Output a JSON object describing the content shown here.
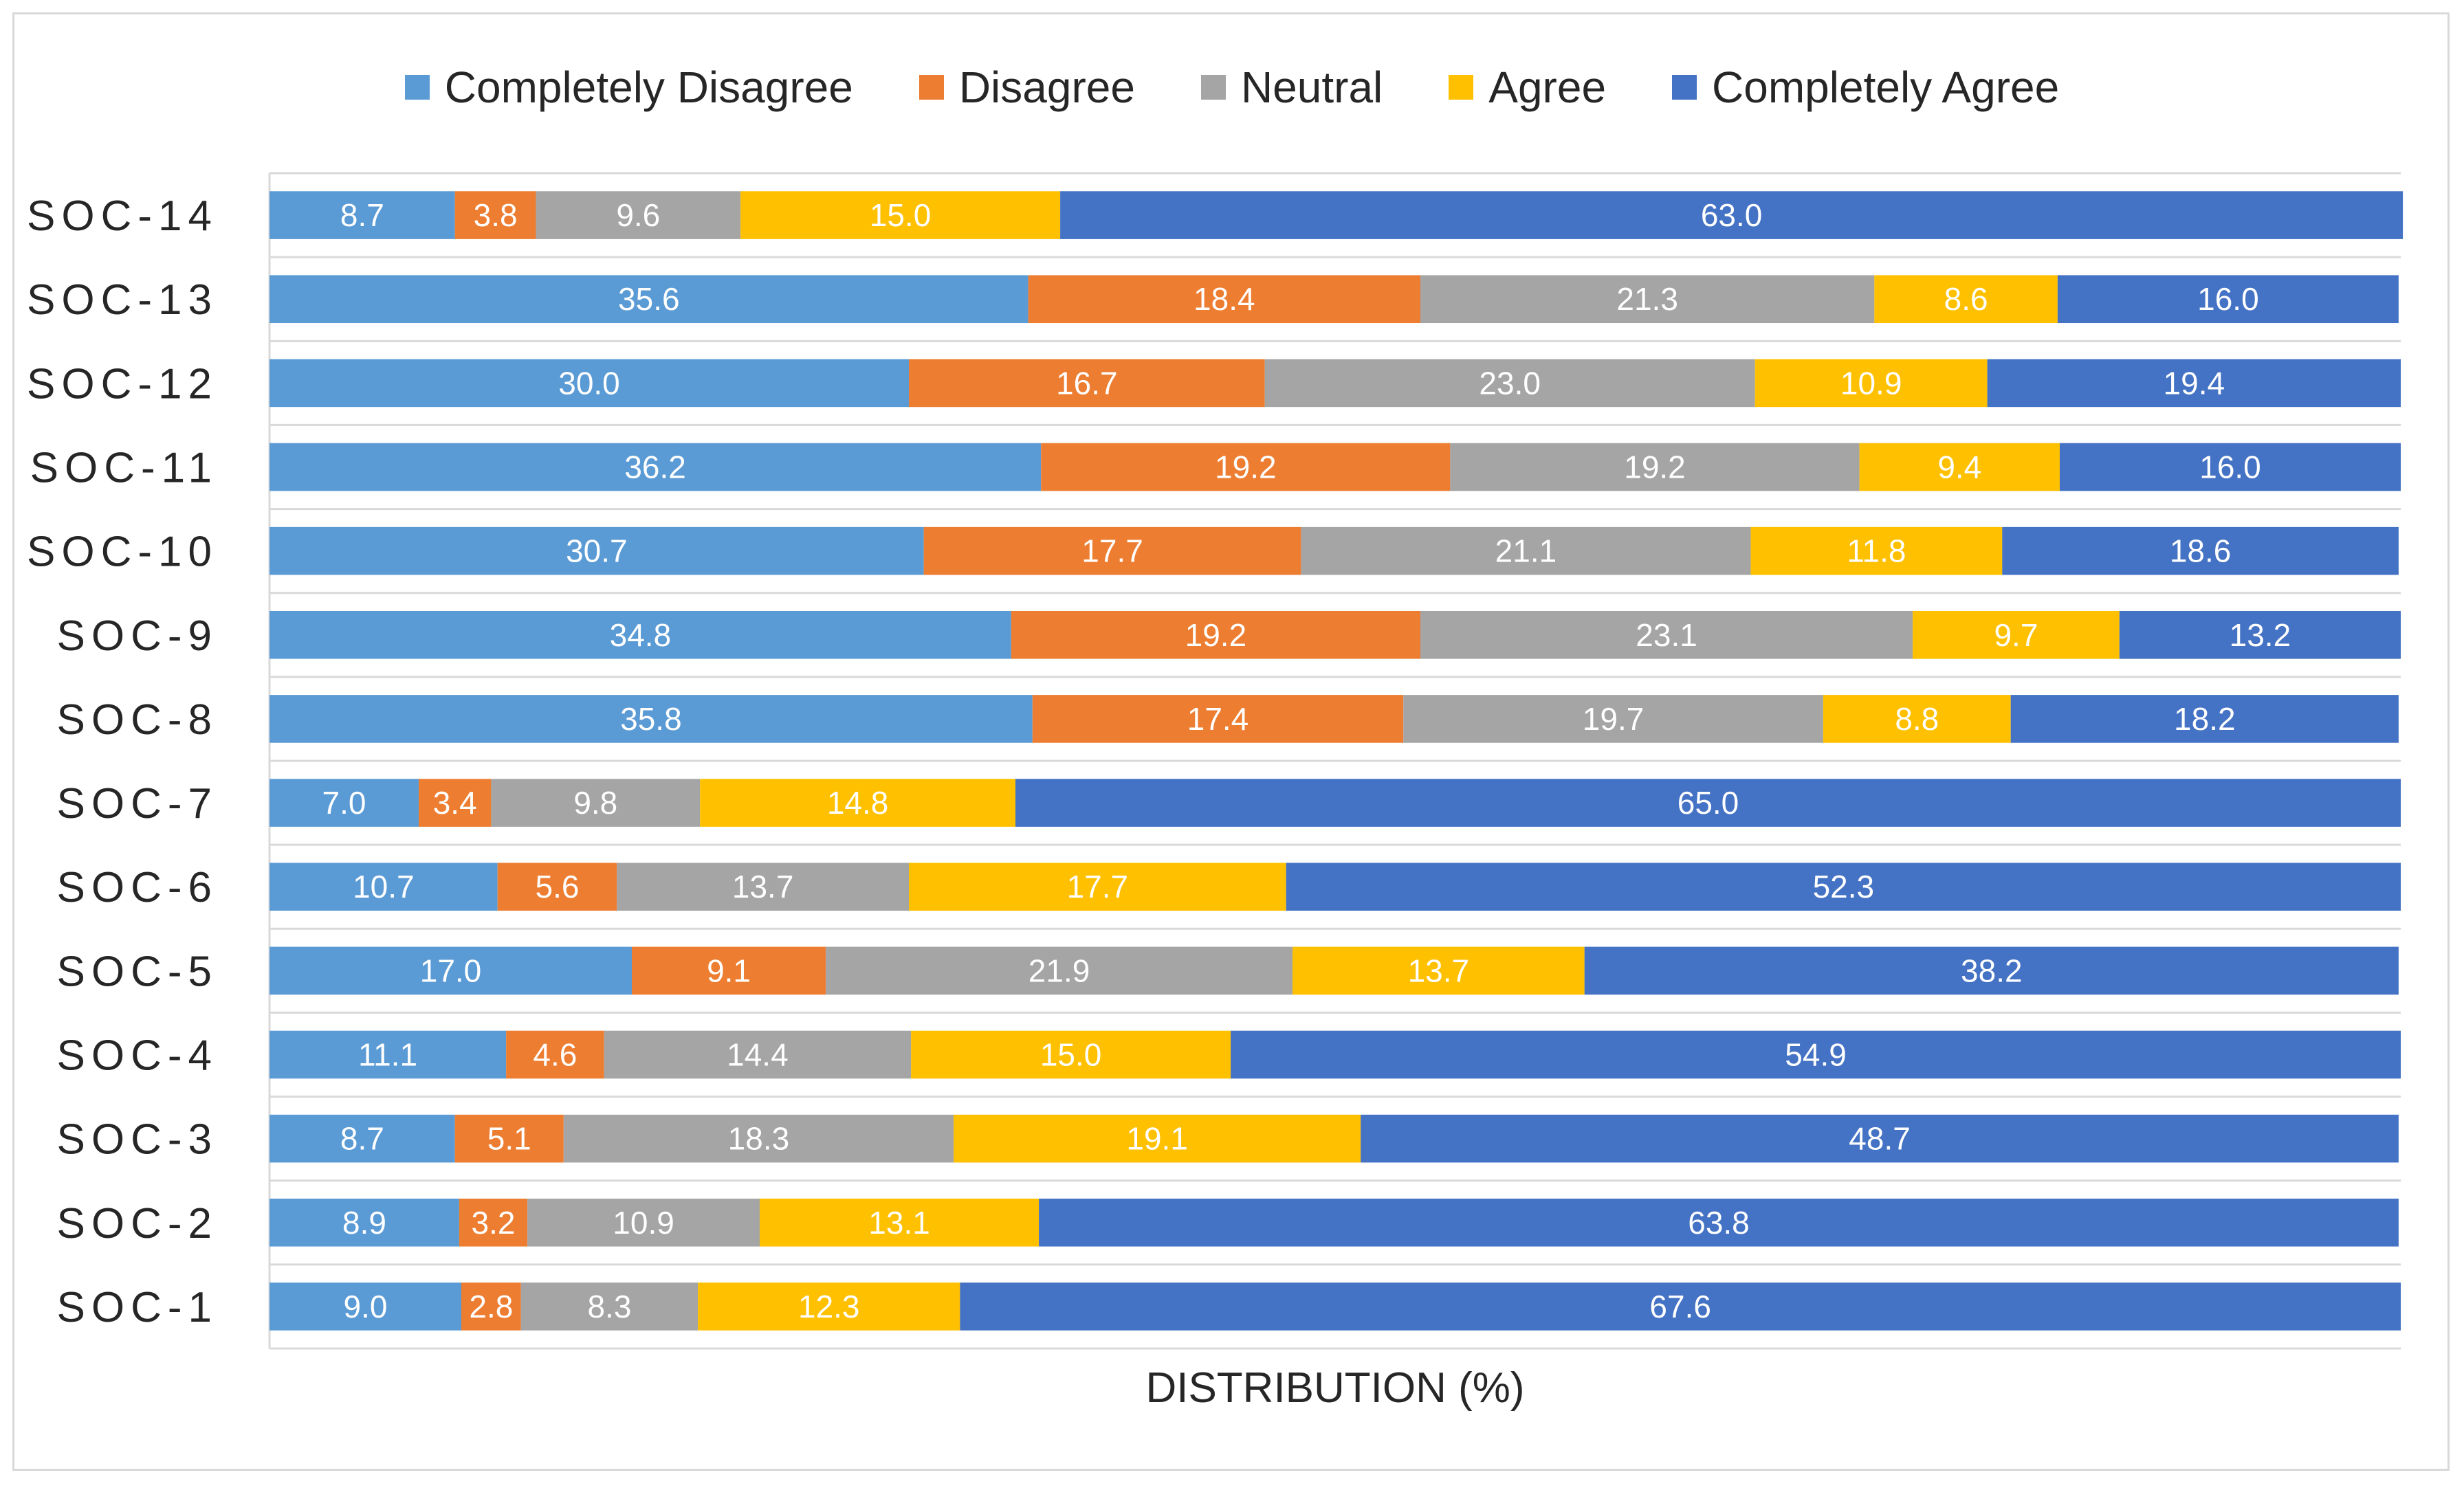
{
  "chart_data": {
    "type": "bar",
    "orientation": "horizontal",
    "stacked": "percent",
    "title": "",
    "xlabel": "DISTRIBUTION (%)",
    "ylabel": "",
    "xlim": [
      0,
      100
    ],
    "legend_position": "top",
    "grid": true,
    "categories": [
      "SOC-14",
      "SOC-13",
      "SOC-12",
      "SOC-11",
      "SOC-10",
      "SOC-9",
      "SOC-8",
      "SOC-7",
      "SOC-6",
      "SOC-5",
      "SOC-4",
      "SOC-3",
      "SOC-2",
      "SOC-1"
    ],
    "series": [
      {
        "name": "Completely Disagree",
        "color": "#5B9BD5",
        "values": [
          8.7,
          35.6,
          30.0,
          36.2,
          30.7,
          34.8,
          35.8,
          7.0,
          10.7,
          17.0,
          11.1,
          8.7,
          8.9,
          9.0
        ]
      },
      {
        "name": "Disagree",
        "color": "#ED7D31",
        "values": [
          3.8,
          18.4,
          16.7,
          19.2,
          17.7,
          19.2,
          17.4,
          3.4,
          5.6,
          9.1,
          4.6,
          5.1,
          3.2,
          2.8
        ]
      },
      {
        "name": "Neutral",
        "color": "#A5A5A5",
        "values": [
          9.6,
          21.3,
          23.0,
          19.2,
          21.1,
          23.1,
          19.7,
          9.8,
          13.7,
          21.9,
          14.4,
          18.3,
          10.9,
          8.3
        ]
      },
      {
        "name": "Agree",
        "color": "#FFC000",
        "values": [
          15.0,
          8.6,
          10.9,
          9.4,
          11.8,
          9.7,
          8.8,
          14.8,
          17.7,
          13.7,
          15.0,
          19.1,
          13.1,
          12.3
        ]
      },
      {
        "name": "Completely Agree",
        "color": "#4472C4",
        "values": [
          63.0,
          16.0,
          19.4,
          16.0,
          18.6,
          13.2,
          18.2,
          65.0,
          52.3,
          38.2,
          54.9,
          48.7,
          63.8,
          67.6
        ]
      }
    ]
  }
}
